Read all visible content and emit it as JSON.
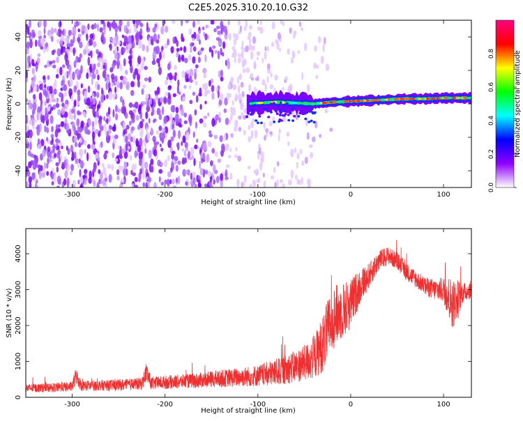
{
  "title": "C2E5.2025.310.20.10.G32",
  "chart_data": [
    {
      "type": "heatmap",
      "xlabel": "Height of straight line (km)",
      "ylabel": "Frequency (Hz)",
      "xlim": [
        -350,
        130
      ],
      "ylim": [
        -50,
        50
      ],
      "xticks": [
        -300,
        -200,
        -100,
        0,
        100
      ],
      "xtick_labels": [
        "-300",
        "-200",
        "-100",
        "0",
        "100"
      ],
      "yticks": [
        -40,
        -20,
        0,
        20,
        40
      ],
      "ytick_labels": [
        "-40",
        "-20",
        "0",
        "20",
        "40"
      ],
      "colorbar": {
        "label": "Normalized spectral amplitude",
        "range": [
          0.0,
          1.0
        ],
        "ticks": [
          0.0,
          0.2,
          0.4,
          0.6,
          0.8
        ],
        "tick_labels": [
          "0.0",
          "0.2",
          "0.4",
          "0.6",
          "0.8"
        ],
        "colors": [
          "#ffffff",
          "#9000ff",
          "#0000ff",
          "#00ffff",
          "#00ff00",
          "#ffff00",
          "#ff0000",
          "#ff0080"
        ]
      },
      "signal_ridge": {
        "x": [
          -112,
          -100,
          -80,
          -60,
          -40,
          -20,
          0,
          20,
          40,
          60,
          80,
          100,
          125
        ],
        "frequency": [
          0,
          0.5,
          1,
          0.5,
          0,
          1,
          1.5,
          2,
          2.5,
          3,
          3,
          3.5,
          3.5
        ]
      },
      "noise_region_x": [
        -350,
        -40
      ]
    },
    {
      "type": "line",
      "xlabel": "Height of straight line (km)",
      "ylabel": "SNR (10 * v/v)",
      "xlim": [
        -350,
        130
      ],
      "ylim": [
        0,
        4700
      ],
      "xticks": [
        -300,
        -200,
        -100,
        0,
        100
      ],
      "xtick_labels": [
        "-300",
        "-200",
        "-100",
        "0",
        "100"
      ],
      "yticks": [
        0,
        1000,
        2000,
        3000,
        4000
      ],
      "ytick_labels": [
        "0",
        "1000",
        "2000",
        "3000",
        "4000"
      ],
      "series": [
        {
          "name": "SNR",
          "color": "#f03030",
          "x": [
            -350,
            -320,
            -300,
            -296,
            -290,
            -270,
            -250,
            -225,
            -220,
            -215,
            -200,
            -175,
            -150,
            -125,
            -100,
            -80,
            -60,
            -50,
            -40,
            -30,
            -25,
            -20,
            -10,
            0,
            10,
            20,
            30,
            40,
            50,
            60,
            70,
            80,
            90,
            100,
            105,
            110,
            115,
            120,
            125,
            130
          ],
          "mean": [
            250,
            270,
            300,
            600,
            320,
            330,
            340,
            380,
            700,
            390,
            420,
            450,
            500,
            550,
            600,
            700,
            850,
            950,
            1100,
            1500,
            1800,
            2200,
            2400,
            2600,
            3100,
            3400,
            3800,
            3950,
            3800,
            3500,
            3300,
            3100,
            3000,
            3000,
            2800,
            2600,
            2700,
            2900,
            2950,
            3000
          ],
          "spread": [
            120,
            130,
            140,
            250,
            150,
            150,
            160,
            170,
            300,
            180,
            190,
            200,
            230,
            260,
            300,
            380,
            450,
            500,
            600,
            800,
            900,
            900,
            800,
            700,
            500,
            350,
            300,
            250,
            250,
            250,
            250,
            250,
            300,
            350,
            600,
            700,
            600,
            300,
            250,
            250
          ]
        }
      ]
    }
  ]
}
